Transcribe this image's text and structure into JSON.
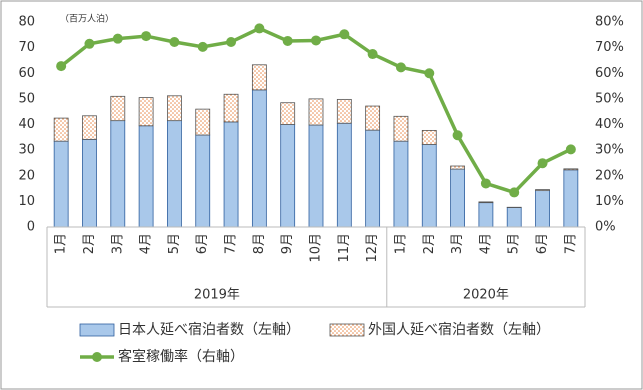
{
  "chart_data": {
    "type": "bar",
    "stacked": true,
    "unit_label": "（百万人泊）",
    "groups": [
      {
        "name": "2019年",
        "categories": [
          "1月",
          "2月",
          "3月",
          "4月",
          "5月",
          "6月",
          "7月",
          "8月",
          "9月",
          "10月",
          "11月",
          "12月"
        ]
      },
      {
        "name": "2020年",
        "categories": [
          "1月",
          "2月",
          "3月",
          "4月",
          "5月",
          "6月",
          "7月"
        ]
      }
    ],
    "series": [
      {
        "name": "日本人延べ宿泊者数（左軸）",
        "type": "bar",
        "color": "#a9c8ea",
        "values": [
          33.5,
          34.2,
          41.5,
          39.5,
          41.5,
          35.9,
          41.0,
          53.5,
          40.0,
          39.8,
          40.5,
          37.8,
          33.5,
          32.2,
          22.6,
          9.5,
          7.6,
          14.2,
          22.3
        ]
      },
      {
        "name": "外国人延べ宿泊者数（左軸）",
        "type": "bar",
        "color": "#f4b183",
        "pattern": "dots",
        "values": [
          9.0,
          9.2,
          9.5,
          11.0,
          9.7,
          10.1,
          10.8,
          9.8,
          8.5,
          10.2,
          9.3,
          9.4,
          9.7,
          5.5,
          1.2,
          0.3,
          0.1,
          0.4,
          0.4
        ]
      },
      {
        "name": "客室稼働率（右軸）",
        "type": "line",
        "axis": "y2",
        "color": "#70ad47",
        "values": [
          62.8,
          71.5,
          73.5,
          74.5,
          72.2,
          70.3,
          72.2,
          77.5,
          72.6,
          72.8,
          75.2,
          67.5,
          62.3,
          60.0,
          35.8,
          17.0,
          13.5,
          24.9,
          30.3
        ]
      }
    ],
    "ylim": [
      0,
      80
    ],
    "yticks": [
      0,
      10,
      20,
      30,
      40,
      50,
      60,
      70,
      80
    ],
    "y2lim": [
      0,
      80
    ],
    "y2ticks": [
      {
        "value": 0,
        "label": "0%"
      },
      {
        "value": 10,
        "label": "10%"
      },
      {
        "value": 20,
        "label": "20%"
      },
      {
        "value": 30,
        "label": "30%"
      },
      {
        "value": 40,
        "label": "40%"
      },
      {
        "value": 50,
        "label": "50%"
      },
      {
        "value": 60,
        "label": "60%"
      },
      {
        "value": 70,
        "label": "70%"
      },
      {
        "value": 80,
        "label": "80%"
      }
    ]
  }
}
